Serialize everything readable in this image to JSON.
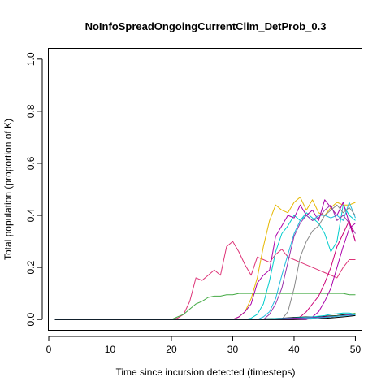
{
  "chart_data": {
    "type": "line",
    "title": "NoInfoSpreadOngoingCurrentClim_DetProb_0.3",
    "xlabel": "Time since incursion detected (timesteps)",
    "ylabel": "Total population (proportion of K)",
    "xlim": [
      0,
      51
    ],
    "ylim": [
      -0.04,
      1.04
    ],
    "xticks": [
      "0",
      "10",
      "20",
      "30",
      "40",
      "50"
    ],
    "yticks": [
      "0.0",
      "0.2",
      "0.4",
      "0.6",
      "0.8",
      "1.0"
    ],
    "grid": false,
    "legend": "none",
    "series": [
      {
        "color": "#dd3377",
        "x": [
          1,
          20,
          21,
          22,
          23,
          24,
          25,
          26,
          27,
          28,
          29,
          30,
          31,
          32,
          33,
          34,
          35,
          36,
          37,
          38,
          39,
          40,
          41,
          42,
          43,
          44,
          45,
          46,
          47,
          48,
          49,
          50
        ],
        "y": [
          0,
          0,
          0.005,
          0.02,
          0.07,
          0.16,
          0.15,
          0.17,
          0.19,
          0.17,
          0.28,
          0.3,
          0.26,
          0.21,
          0.17,
          0.24,
          0.23,
          0.22,
          0.25,
          0.27,
          0.24,
          0.23,
          0.22,
          0.21,
          0.2,
          0.19,
          0.18,
          0.17,
          0.16,
          0.2,
          0.23,
          0.23
        ]
      },
      {
        "color": "#44aa44",
        "x": [
          1,
          20,
          21,
          22,
          23,
          24,
          25,
          26,
          27,
          28,
          29,
          30,
          31,
          32,
          33,
          35,
          40,
          45,
          48,
          49,
          50
        ],
        "y": [
          0,
          0,
          0.01,
          0.02,
          0.04,
          0.06,
          0.07,
          0.085,
          0.09,
          0.09,
          0.095,
          0.095,
          0.1,
          0.1,
          0.1,
          0.1,
          0.1,
          0.1,
          0.1,
          0.095,
          0.095
        ]
      },
      {
        "color": "#e6b800",
        "x": [
          1,
          30,
          31,
          32,
          33,
          34,
          35,
          36,
          37,
          38,
          39,
          40,
          41,
          42,
          43,
          44,
          45,
          46,
          47,
          48,
          49,
          50
        ],
        "y": [
          0,
          0,
          0.01,
          0.03,
          0.08,
          0.16,
          0.28,
          0.38,
          0.44,
          0.42,
          0.41,
          0.45,
          0.47,
          0.42,
          0.46,
          0.41,
          0.4,
          0.43,
          0.45,
          0.44,
          0.44,
          0.45
        ]
      },
      {
        "color": "#00cccc",
        "x": [
          1,
          32,
          33,
          34,
          35,
          36,
          37,
          38,
          39,
          40,
          41,
          42,
          43,
          44,
          45,
          46,
          47,
          48,
          49,
          50
        ],
        "y": [
          0,
          0,
          0.005,
          0.02,
          0.06,
          0.15,
          0.26,
          0.33,
          0.36,
          0.4,
          0.38,
          0.41,
          0.39,
          0.37,
          0.33,
          0.26,
          0.3,
          0.44,
          0.4,
          0.38
        ]
      },
      {
        "color": "#aa00aa",
        "x": [
          1,
          30,
          31,
          32,
          33,
          34,
          35,
          36,
          37,
          38,
          39,
          40,
          41,
          42,
          43,
          44,
          45,
          46,
          47,
          48,
          49,
          50
        ],
        "y": [
          0,
          0,
          0.01,
          0.03,
          0.06,
          0.14,
          0.17,
          0.19,
          0.32,
          0.36,
          0.4,
          0.39,
          0.44,
          0.4,
          0.42,
          0.38,
          0.46,
          0.43,
          0.4,
          0.45,
          0.37,
          0.3
        ]
      },
      {
        "color": "#22bbdd",
        "x": [
          1,
          34,
          35,
          36,
          37,
          38,
          39,
          40,
          41,
          42,
          43,
          44,
          45,
          46,
          47,
          48,
          49,
          50
        ],
        "y": [
          0,
          0,
          0.01,
          0.03,
          0.08,
          0.17,
          0.25,
          0.33,
          0.38,
          0.4,
          0.38,
          0.4,
          0.4,
          0.39,
          0.4,
          0.38,
          0.45,
          0.39
        ]
      },
      {
        "color": "#9933aa",
        "x": [
          1,
          35,
          36,
          37,
          38,
          39,
          40,
          41,
          42,
          43,
          44,
          45,
          46,
          47,
          48,
          49,
          50
        ],
        "y": [
          0,
          0,
          0.02,
          0.06,
          0.12,
          0.22,
          0.32,
          0.37,
          0.4,
          0.38,
          0.39,
          0.42,
          0.44,
          0.38,
          0.4,
          0.37,
          0.33
        ]
      },
      {
        "color": "#888888",
        "x": [
          1,
          38,
          39,
          40,
          41,
          42,
          43,
          44,
          45,
          46,
          47,
          48,
          49,
          50
        ],
        "y": [
          0,
          0,
          0.03,
          0.12,
          0.24,
          0.3,
          0.34,
          0.36,
          0.4,
          0.42,
          0.44,
          0.41,
          0.43,
          0.4
        ]
      },
      {
        "color": "#cc0077",
        "x": [
          1,
          40,
          41,
          42,
          43,
          44,
          45,
          46,
          47,
          48,
          49,
          50
        ],
        "y": [
          0,
          0,
          0.01,
          0.03,
          0.06,
          0.09,
          0.14,
          0.2,
          0.28,
          0.33,
          0.38,
          0.3
        ]
      },
      {
        "color": "#aa00aa",
        "x": [
          1,
          42,
          43,
          44,
          45,
          46,
          47,
          48,
          49,
          50
        ],
        "y": [
          0,
          0,
          0.01,
          0.03,
          0.07,
          0.12,
          0.2,
          0.28,
          0.35,
          0.37
        ]
      },
      {
        "color": "#000000",
        "x": [
          1,
          30,
          35,
          38,
          40,
          42,
          44,
          45,
          46,
          47,
          48,
          49,
          50
        ],
        "y": [
          0,
          0,
          0.002,
          0.005,
          0.008,
          0.01,
          0.01,
          0.012,
          0.014,
          0.015,
          0.018,
          0.02,
          0.02
        ]
      },
      {
        "color": "#000000",
        "x": [
          1,
          32,
          36,
          40,
          43,
          45,
          46,
          47,
          48,
          49,
          50
        ],
        "y": [
          0,
          0,
          0.002,
          0.004,
          0.006,
          0.008,
          0.01,
          0.013,
          0.016,
          0.018,
          0.022
        ]
      },
      {
        "color": "#00cccc",
        "x": [
          1,
          33,
          36,
          40,
          43,
          45,
          46,
          47,
          48,
          49,
          50
        ],
        "y": [
          0,
          0,
          0.003,
          0.006,
          0.01,
          0.015,
          0.02,
          0.022,
          0.025,
          0.025,
          0.02
        ]
      },
      {
        "color": "#44aa44",
        "x": [
          1,
          36,
          40,
          44,
          46,
          47,
          48,
          49,
          50
        ],
        "y": [
          0,
          0,
          0.004,
          0.008,
          0.012,
          0.014,
          0.016,
          0.02,
          0.024
        ]
      },
      {
        "color": "#aa00aa",
        "x": [
          1,
          34,
          38,
          42,
          45,
          47,
          48,
          49,
          50
        ],
        "y": [
          0,
          0,
          0.003,
          0.006,
          0.01,
          0.012,
          0.015,
          0.018,
          0.016
        ]
      },
      {
        "color": "#22bbdd",
        "x": [
          1,
          38,
          42,
          45,
          47,
          48,
          49,
          50
        ],
        "y": [
          0,
          0,
          0.004,
          0.008,
          0.012,
          0.014,
          0.016,
          0.018
        ]
      },
      {
        "color": "#000000",
        "x": [
          1,
          40,
          44,
          46,
          48,
          49,
          50
        ],
        "y": [
          0,
          0,
          0.003,
          0.006,
          0.01,
          0.012,
          0.015
        ]
      }
    ]
  }
}
